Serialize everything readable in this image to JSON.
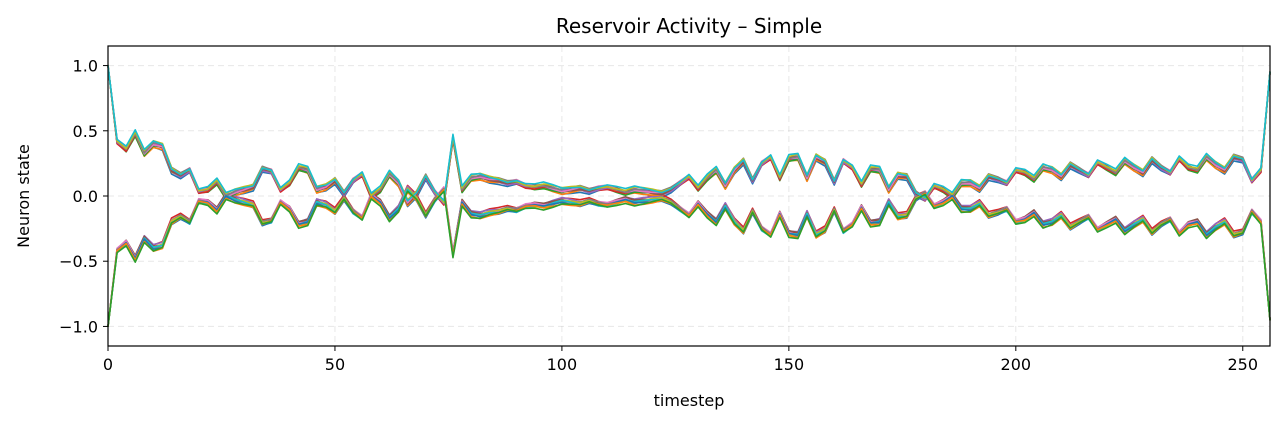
{
  "chart_data": {
    "type": "line",
    "title": "Reservoir Activity – Simple",
    "xlabel": "timestep",
    "ylabel": "Neuron state",
    "xlim": [
      0,
      256
    ],
    "ylim": [
      -1.15,
      1.15
    ],
    "xticks": [
      0,
      50,
      100,
      150,
      200,
      250
    ],
    "xtick_labels": [
      "0",
      "50",
      "100",
      "150",
      "200",
      "250"
    ],
    "yticks": [
      1.0,
      0.5,
      0.0,
      -0.5,
      -1.0
    ],
    "ytick_labels": [
      "1.0",
      "0.5",
      "0.0",
      "−0.5",
      "−1.0"
    ],
    "grid": true,
    "legend": "none",
    "series_colors": [
      "#1f77b4",
      "#ff7f0e",
      "#2ca02c",
      "#d62728",
      "#9467bd",
      "#8c564b",
      "#e377c2",
      "#7f7f7f",
      "#bcbd22",
      "#17becf"
    ],
    "envelope": {
      "x": [
        0,
        2,
        4,
        6,
        8,
        10,
        12,
        14,
        16,
        18,
        20,
        22,
        24,
        26,
        28,
        30,
        32,
        34,
        36,
        38,
        40,
        42,
        44,
        46,
        48,
        50,
        52,
        54,
        56,
        58,
        60,
        62,
        64,
        66,
        68,
        70,
        72,
        74,
        76,
        78,
        80,
        82,
        84,
        86,
        88,
        90,
        92,
        94,
        96,
        98,
        100,
        102,
        104,
        106,
        108,
        110,
        112,
        114,
        116,
        118,
        120,
        122,
        124,
        126,
        128,
        130,
        132,
        134,
        136,
        138,
        140,
        142,
        144,
        146,
        148,
        150,
        152,
        154,
        156,
        158,
        160,
        162,
        164,
        166,
        168,
        170,
        172,
        174,
        176,
        178,
        180,
        182,
        184,
        186,
        188,
        190,
        192,
        194,
        196,
        198,
        200,
        202,
        204,
        206,
        208,
        210,
        212,
        214,
        216,
        218,
        220,
        222,
        224,
        226,
        228,
        230,
        232,
        234,
        236,
        238,
        240,
        242,
        244,
        246,
        248,
        250,
        252,
        254,
        256
      ],
      "y": [
        1.0,
        0.42,
        0.36,
        0.48,
        0.33,
        0.4,
        0.38,
        0.2,
        0.16,
        0.2,
        0.04,
        0.05,
        0.11,
        0.0,
        0.03,
        0.05,
        0.07,
        0.21,
        0.19,
        0.05,
        0.1,
        0.22,
        0.2,
        0.05,
        0.07,
        0.12,
        0.02,
        0.12,
        0.17,
        0.0,
        0.05,
        0.17,
        0.1,
        -0.05,
        0.02,
        0.15,
        0.03,
        -0.05,
        0.45,
        0.05,
        0.14,
        0.15,
        0.13,
        0.12,
        0.1,
        0.11,
        0.08,
        0.07,
        0.08,
        0.06,
        0.04,
        0.05,
        0.06,
        0.04,
        0.06,
        0.07,
        0.05,
        0.03,
        0.05,
        0.04,
        0.03,
        0.02,
        0.05,
        0.1,
        0.15,
        0.06,
        0.14,
        0.2,
        0.08,
        0.2,
        0.27,
        0.12,
        0.25,
        0.3,
        0.14,
        0.29,
        0.3,
        0.14,
        0.3,
        0.26,
        0.11,
        0.27,
        0.22,
        0.09,
        0.21,
        0.2,
        0.05,
        0.16,
        0.15,
        0.02,
        -0.02,
        0.08,
        0.05,
        0.0,
        0.1,
        0.1,
        0.06,
        0.15,
        0.13,
        0.1,
        0.2,
        0.18,
        0.13,
        0.22,
        0.2,
        0.15,
        0.24,
        0.2,
        0.16,
        0.26,
        0.22,
        0.18,
        0.27,
        0.22,
        0.18,
        0.28,
        0.22,
        0.18,
        0.29,
        0.22,
        0.2,
        0.3,
        0.24,
        0.2,
        0.3,
        0.28,
        0.12,
        0.2,
        0.95
      ],
      "band_label_note": ""
    }
  }
}
